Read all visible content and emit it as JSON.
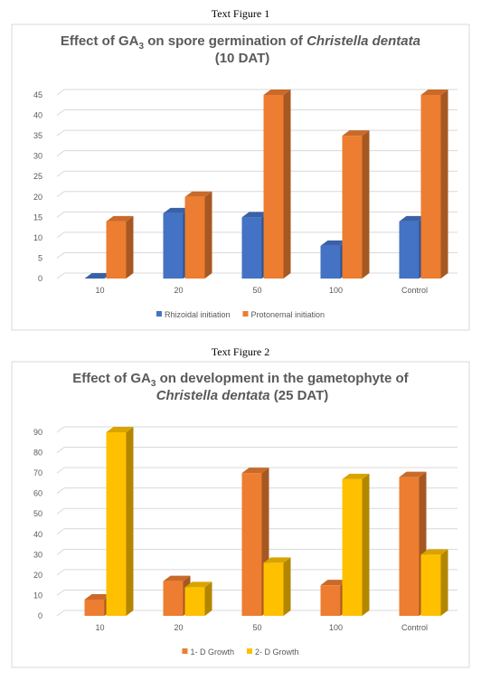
{
  "chart_data": [
    {
      "type": "bar3d",
      "caption": "Text Figure 1",
      "title": [
        "Effect of GA",
        "3",
        " on spore germination of ",
        "Christella dentata",
        "(10 DAT)"
      ],
      "categories": [
        "10",
        "20",
        "50",
        "100",
        "Control"
      ],
      "series": [
        {
          "name": "Rhizoidal initiation",
          "color": "#4472c4",
          "values": [
            0,
            16,
            15,
            8,
            14
          ]
        },
        {
          "name": "Protonemal initiation",
          "color": "#ed7d31",
          "values": [
            14,
            20,
            45,
            35,
            45
          ]
        }
      ],
      "ylim": [
        0,
        45
      ],
      "yticks": [
        0,
        5,
        10,
        15,
        20,
        25,
        30,
        35,
        40,
        45
      ],
      "grid": true,
      "legend": "bottom"
    },
    {
      "type": "bar3d",
      "caption": "Text Figure 2",
      "title": [
        "Effect of GA",
        "3",
        " on development in the gametophyte of",
        "Christella dentata",
        " (25 DAT)"
      ],
      "categories": [
        "10",
        "20",
        "50",
        "100",
        "Control"
      ],
      "series": [
        {
          "name": "1- D Growth",
          "color": "#ed7d31",
          "values": [
            8,
            17,
            70,
            15,
            68
          ]
        },
        {
          "name": "2- D Growth",
          "color": "#ffc000",
          "values": [
            90,
            14,
            26,
            67,
            30
          ]
        }
      ],
      "ylim": [
        0,
        90
      ],
      "yticks": [
        0,
        10,
        20,
        30,
        40,
        50,
        60,
        70,
        80,
        90
      ],
      "grid": true,
      "legend": "bottom"
    }
  ]
}
